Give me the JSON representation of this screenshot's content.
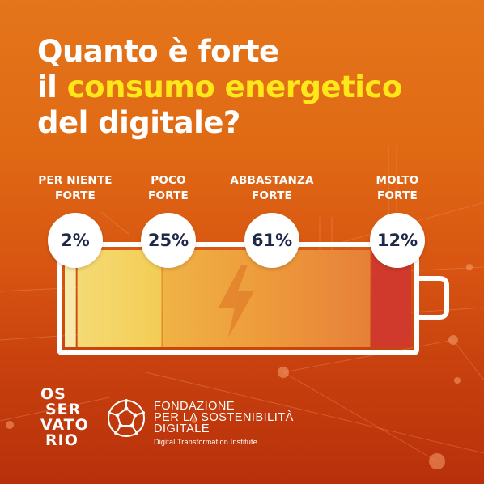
{
  "title": {
    "line1": "Quanto è forte",
    "line2_prefix": "il ",
    "line2_highlight": "consumo energetico",
    "line3": "del digitale?"
  },
  "chart_data": {
    "type": "bar",
    "categories": [
      "PER NIENTE FORTE",
      "POCO FORTE",
      "ABBASTANZA FORTE",
      "MOLTO FORTE"
    ],
    "category_lines": [
      [
        "PER NIENTE",
        "FORTE"
      ],
      [
        "POCO",
        "FORTE"
      ],
      [
        "ABBASTANZA",
        "FORTE"
      ],
      [
        "MOLTO",
        "FORTE"
      ]
    ],
    "values": [
      2,
      25,
      61,
      12
    ],
    "value_labels": [
      "2%",
      "25%",
      "61%",
      "12%"
    ],
    "colors": [
      "#f7e9a8",
      "#f3d35a",
      "#ec9a3a",
      "#d03a2c"
    ],
    "stacked_horizontal": true,
    "battery_style": true
  },
  "footer": {
    "osservatorio_lines": [
      "OS",
      "SER",
      "VATO",
      "RIO"
    ],
    "fondazione_lines": [
      "FONDAZIONE",
      "PER LA SOSTENIBILITÀ",
      "DIGITALE"
    ],
    "fondazione_subtitle": "Digital Transformation Institute"
  },
  "colors": {
    "highlight": "#ffe71a",
    "bubble_text": "#1f2a48",
    "battery_outline": "#ffffff"
  },
  "icons": [
    "lightning-bolt-icon",
    "dodecahedron-logo-icon"
  ]
}
